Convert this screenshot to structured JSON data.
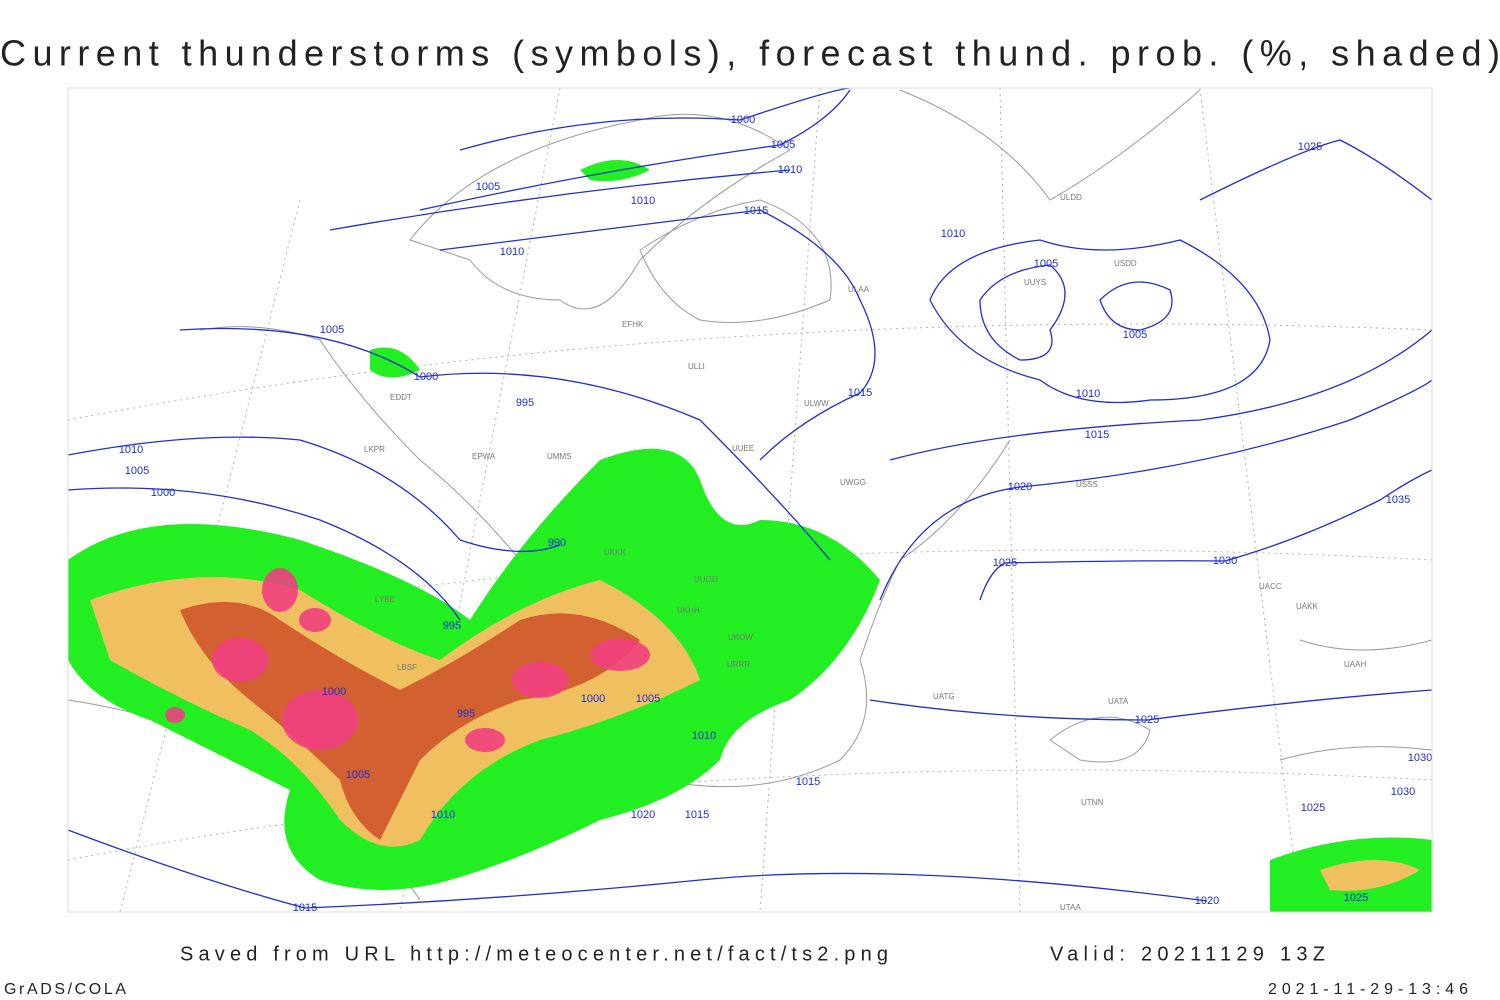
{
  "title": "Current thunderstorms (symbols), forecast thund. prob. (%, shaded)",
  "footer": {
    "source": "Saved from URL http://meteocenter.net/fact/ts2.png",
    "valid": "Valid: 20211129 13Z",
    "software": "GrADS/COLA",
    "timestamp": "2021-11-29-13:46"
  },
  "isobar_labels": [
    "1000",
    "1005",
    "1010",
    "1005",
    "1010",
    "1015",
    "1010",
    "1010",
    "1005",
    "1005",
    "1010",
    "1015",
    "1005",
    "1000",
    "995",
    "1015",
    "1020",
    "1025",
    "1030",
    "1035",
    "1010",
    "1005",
    "1000",
    "990",
    "995",
    "1000",
    "995",
    "1000",
    "1005",
    "1010",
    "1005",
    "1010",
    "1020",
    "1015",
    "1015",
    "1025",
    "1025",
    "1030",
    "1030",
    "1025",
    "1020",
    "1015",
    "1025"
  ],
  "station_labels": [
    "EFHK",
    "ULLI",
    "UUEE",
    "ULAA",
    "ULDD",
    "UUYS",
    "USDD",
    "ULWW",
    "USSS",
    "UWGG",
    "UUOO",
    "UKKK",
    "UKHH",
    "UKOW",
    "URRR",
    "UATG",
    "UATA",
    "UTNN",
    "LYBE",
    "LBSF",
    "LKPR",
    "EPWA",
    "EDDT",
    "UMMS",
    "UAAH",
    "UACC",
    "UAKK",
    "UTAA"
  ]
}
